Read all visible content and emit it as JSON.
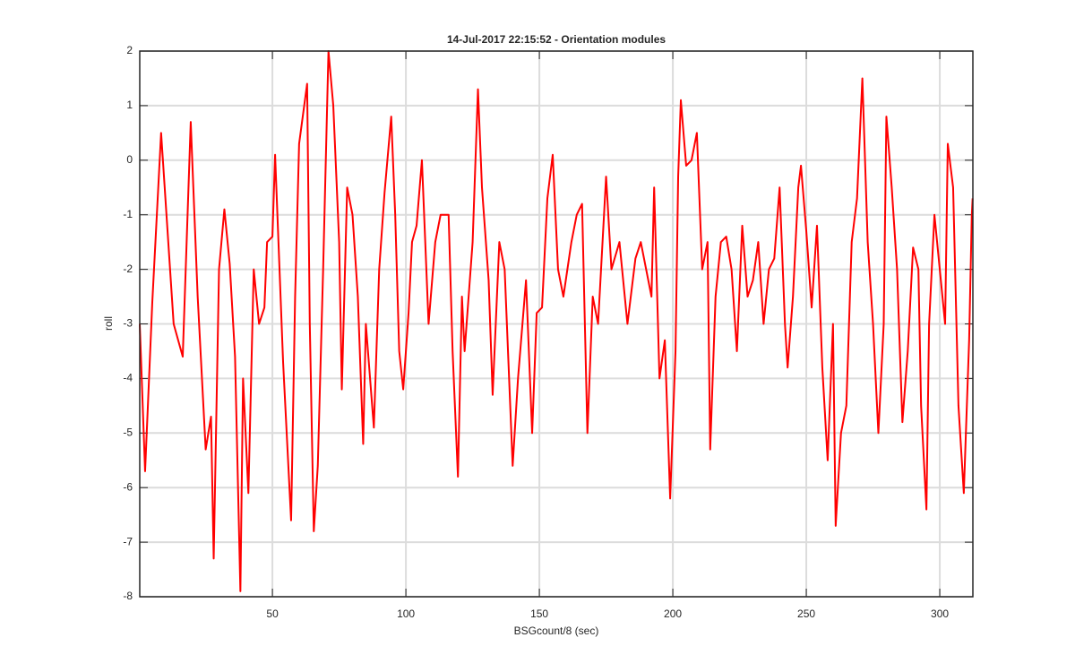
{
  "chart_data": {
    "type": "line",
    "title": "14-Jul-2017 22:15:52 - Orientation modules",
    "x_label": "BSGcount/8 (sec)",
    "y_label": "roll",
    "x": [
      0.3,
      2.3,
      5,
      8.3,
      13,
      16.4,
      19.4,
      22,
      25,
      27,
      28,
      30,
      32,
      34,
      36,
      38,
      39,
      41,
      43,
      45,
      47,
      48,
      50,
      51,
      54,
      57,
      58.5,
      60,
      63,
      64,
      65.5,
      67,
      69,
      71,
      72.8,
      75,
      76,
      78,
      80,
      82,
      84,
      85,
      88,
      90,
      92,
      94.5,
      96,
      97.5,
      99,
      101,
      102.3,
      104,
      106,
      108.5,
      111,
      113,
      116,
      117.5,
      119.5,
      121,
      122,
      125,
      127,
      128.5,
      131,
      132.5,
      135,
      137,
      140,
      142,
      145,
      147.3,
      149,
      151,
      153,
      155,
      157,
      159,
      162,
      164,
      166,
      168,
      170,
      172,
      175,
      177,
      180,
      183,
      186,
      188,
      190,
      192,
      193,
      195,
      197,
      199,
      201,
      202,
      203,
      205,
      207,
      209,
      211,
      213,
      214,
      216,
      218,
      220,
      222,
      224,
      226,
      228,
      230,
      232,
      234,
      236,
      238,
      240,
      242,
      243,
      245,
      247,
      248,
      250,
      252,
      254,
      256,
      258,
      260,
      261,
      263,
      265,
      267,
      269,
      271,
      273,
      275,
      277,
      279,
      280,
      282,
      284,
      286,
      288,
      290,
      292,
      293,
      295,
      296,
      298,
      300,
      302,
      303,
      305,
      307,
      309,
      311,
      312,
      312.3
    ],
    "values": [
      -3,
      -5.7,
      -2.6,
      0.5,
      -3,
      -3.6,
      0.7,
      -2.5,
      -5.3,
      -4.7,
      -7.3,
      -2,
      -0.9,
      -1.9,
      -3.6,
      -7.9,
      -4,
      -6.1,
      -2,
      -3,
      -2.7,
      -1.5,
      -1.4,
      0.1,
      -3.7,
      -6.6,
      -2.5,
      0.3,
      1.4,
      -3,
      -6.8,
      -5.6,
      -2,
      2,
      1,
      -1.5,
      -4.2,
      -0.5,
      -1,
      -2.5,
      -5.2,
      -3,
      -4.9,
      -2,
      -0.6,
      0.8,
      -1,
      -3.5,
      -4.2,
      -2.8,
      -1.5,
      -1.2,
      0,
      -3,
      -1.5,
      -1,
      -1,
      -3.5,
      -5.8,
      -2.5,
      -3.5,
      -1.5,
      1.3,
      -0.5,
      -2.2,
      -4.3,
      -1.5,
      -2,
      -5.6,
      -4,
      -2.2,
      -5,
      -2.8,
      -2.7,
      -0.7,
      0.1,
      -2,
      -2.5,
      -1.5,
      -1,
      -0.8,
      -5,
      -2.5,
      -3,
      -0.3,
      -2,
      -1.5,
      -3,
      -1.8,
      -1.5,
      -2,
      -2.5,
      -0.5,
      -4,
      -3.3,
      -6.2,
      -3.5,
      -0.3,
      1.1,
      -0.1,
      0,
      0.5,
      -2,
      -1.5,
      -5.3,
      -2.5,
      -1.5,
      -1.4,
      -2,
      -3.5,
      -1.2,
      -2.5,
      -2.2,
      -1.5,
      -3,
      -2,
      -1.8,
      -0.5,
      -3,
      -3.8,
      -2.5,
      -0.5,
      -0.1,
      -1.3,
      -2.7,
      -1.2,
      -3.8,
      -5.5,
      -3,
      -6.7,
      -5,
      -4.5,
      -1.5,
      -0.7,
      1.5,
      -1.5,
      -3,
      -5,
      -3,
      0.8,
      -0.5,
      -2,
      -4.8,
      -3.5,
      -1.6,
      -2,
      -4.5,
      -6.4,
      -3,
      -1,
      -2,
      -3,
      0.3,
      -0.5,
      -4.5,
      -6.1,
      -3.3,
      -1,
      -0.7
    ],
    "color": "#ff0000",
    "xlim": [
      0.3,
      312.4
    ],
    "xticks": [
      50,
      100,
      150,
      200,
      250,
      300
    ],
    "ylim": [
      -8,
      2
    ],
    "yticks": [
      -8,
      -7,
      -6,
      -5,
      -4,
      -3,
      -2,
      -1,
      0,
      1,
      2
    ],
    "grid": true
  }
}
